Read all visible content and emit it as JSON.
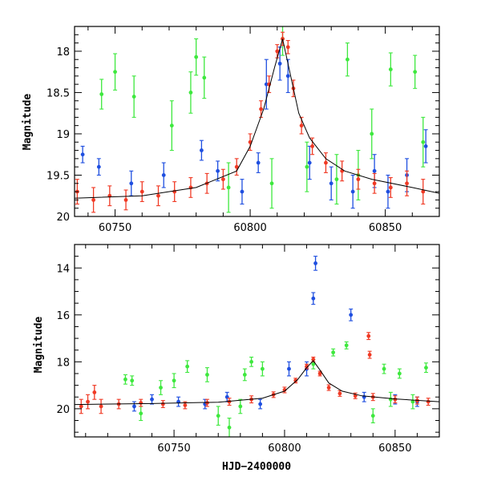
{
  "figure": {
    "xlabel": "HJD−2400000",
    "ylabel_top": "Magnitude",
    "ylabel_bottom": "Magnitude"
  },
  "colors": {
    "blue": "#1f4fe0",
    "green": "#3ee83e",
    "red": "#f03a25",
    "model": "#000000"
  },
  "chart_data": [
    {
      "type": "scatter",
      "panel": "top",
      "xlim": [
        60735,
        60870
      ],
      "ylim": [
        20.0,
        17.7
      ],
      "inverted_y": true,
      "ylabel": "Magnitude",
      "xticks": [
        60750,
        60800,
        60850
      ],
      "yticks": [
        18,
        18.5,
        19,
        19.5,
        20
      ],
      "ytick_labels": [
        "18",
        "18.5",
        "19",
        "19.5",
        "20"
      ],
      "series": [
        {
          "color": "green",
          "points": [
            [
              60745,
              18.52,
              0.18
            ],
            [
              60750,
              18.25,
              0.22
            ],
            [
              60757,
              18.55,
              0.25
            ],
            [
              60771,
              18.9,
              0.3
            ],
            [
              60778,
              18.5,
              0.25
            ],
            [
              60780,
              18.07,
              0.22
            ],
            [
              60783,
              18.32,
              0.25
            ],
            [
              60792,
              19.65,
              0.3
            ],
            [
              60808,
              19.6,
              0.3
            ],
            [
              60812,
              17.85,
              0.2
            ],
            [
              60821,
              19.4,
              0.3
            ],
            [
              60832,
              19.55,
              0.3
            ],
            [
              60836,
              18.1,
              0.2
            ],
            [
              60840,
              19.5,
              0.3
            ],
            [
              60845,
              19.0,
              0.3
            ],
            [
              60852,
              18.22,
              0.2
            ],
            [
              60861,
              18.25,
              0.2
            ],
            [
              60864,
              19.1,
              0.3
            ]
          ]
        },
        {
          "color": "blue",
          "points": [
            [
              60738,
              19.25,
              0.1
            ],
            [
              60744,
              19.4,
              0.1
            ],
            [
              60756,
              19.6,
              0.15
            ],
            [
              60768,
              19.5,
              0.15
            ],
            [
              60782,
              19.2,
              0.12
            ],
            [
              60788,
              19.45,
              0.12
            ],
            [
              60797,
              19.7,
              0.15
            ],
            [
              60803,
              19.35,
              0.12
            ],
            [
              60806,
              18.4,
              0.3
            ],
            [
              60811,
              18.15,
              0.2
            ],
            [
              60814,
              18.3,
              0.2
            ],
            [
              60822,
              19.35,
              0.2
            ],
            [
              60830,
              19.6,
              0.2
            ],
            [
              60838,
              19.7,
              0.2
            ],
            [
              60846,
              19.45,
              0.2
            ],
            [
              60851,
              19.7,
              0.2
            ],
            [
              60858,
              19.5,
              0.2
            ],
            [
              60865,
              19.15,
              0.2
            ]
          ]
        },
        {
          "color": "red",
          "points": [
            [
              60736,
              19.7,
              0.15
            ],
            [
              60742,
              19.8,
              0.15
            ],
            [
              60748,
              19.75,
              0.12
            ],
            [
              60754,
              19.8,
              0.12
            ],
            [
              60760,
              19.7,
              0.12
            ],
            [
              60766,
              19.75,
              0.12
            ],
            [
              60772,
              19.7,
              0.12
            ],
            [
              60778,
              19.65,
              0.12
            ],
            [
              60784,
              19.6,
              0.12
            ],
            [
              60790,
              19.55,
              0.12
            ],
            [
              60795,
              19.4,
              0.1
            ],
            [
              60800,
              19.1,
              0.1
            ],
            [
              60804,
              18.7,
              0.1
            ],
            [
              60807,
              18.4,
              0.1
            ],
            [
              60810,
              18.0,
              0.08
            ],
            [
              60812,
              17.85,
              0.08
            ],
            [
              60814,
              17.95,
              0.08
            ],
            [
              60816,
              18.45,
              0.1
            ],
            [
              60819,
              18.9,
              0.1
            ],
            [
              60823,
              19.15,
              0.1
            ],
            [
              60828,
              19.35,
              0.12
            ],
            [
              60834,
              19.45,
              0.12
            ],
            [
              60840,
              19.55,
              0.12
            ],
            [
              60846,
              19.6,
              0.12
            ],
            [
              60852,
              19.65,
              0.12
            ],
            [
              60858,
              19.6,
              0.15
            ],
            [
              60864,
              19.7,
              0.15
            ]
          ]
        }
      ],
      "model_curve": [
        [
          60735,
          19.78
        ],
        [
          60760,
          19.75
        ],
        [
          60780,
          19.65
        ],
        [
          60795,
          19.45
        ],
        [
          60800,
          19.15
        ],
        [
          60805,
          18.7
        ],
        [
          60809,
          18.2
        ],
        [
          60812,
          17.85
        ],
        [
          60815,
          18.3
        ],
        [
          60818,
          18.75
        ],
        [
          60822,
          19.05
        ],
        [
          60828,
          19.3
        ],
        [
          60835,
          19.45
        ],
        [
          60845,
          19.55
        ],
        [
          60860,
          19.65
        ],
        [
          60870,
          19.72
        ]
      ]
    },
    {
      "type": "scatter",
      "panel": "bottom",
      "xlim": [
        60705,
        60870
      ],
      "ylim": [
        21.2,
        13.0
      ],
      "inverted_y": true,
      "ylabel": "Magnitude",
      "xlabel": "HJD−2400000",
      "xticks": [
        60750,
        60800,
        60850
      ],
      "yticks": [
        14,
        16,
        18,
        20
      ],
      "ytick_labels": [
        "14",
        "16",
        "18",
        "20"
      ],
      "series": [
        {
          "color": "green",
          "points": [
            [
              60728,
              18.75,
              0.2
            ],
            [
              60731,
              18.8,
              0.2
            ],
            [
              60735,
              20.2,
              0.3
            ],
            [
              60744,
              19.1,
              0.3
            ],
            [
              60750,
              18.8,
              0.3
            ],
            [
              60756,
              18.2,
              0.25
            ],
            [
              60765,
              18.55,
              0.3
            ],
            [
              60770,
              20.3,
              0.4
            ],
            [
              60775,
              20.8,
              0.4
            ],
            [
              60780,
              19.9,
              0.3
            ],
            [
              60782,
              18.55,
              0.25
            ],
            [
              60785,
              18.0,
              0.2
            ],
            [
              60790,
              18.3,
              0.3
            ],
            [
              60813,
              18.1,
              0.2
            ],
            [
              60822,
              17.6,
              0.15
            ],
            [
              60828,
              17.3,
              0.15
            ],
            [
              60840,
              20.3,
              0.3
            ],
            [
              60845,
              18.3,
              0.2
            ],
            [
              60848,
              19.6,
              0.3
            ],
            [
              60852,
              18.5,
              0.2
            ],
            [
              60858,
              19.7,
              0.3
            ],
            [
              60864,
              18.25,
              0.2
            ]
          ]
        },
        {
          "color": "blue",
          "points": [
            [
              60732,
              19.9,
              0.2
            ],
            [
              60740,
              19.6,
              0.2
            ],
            [
              60752,
              19.7,
              0.2
            ],
            [
              60764,
              19.8,
              0.2
            ],
            [
              60774,
              19.5,
              0.2
            ],
            [
              60789,
              19.8,
              0.2
            ],
            [
              60802,
              18.3,
              0.3
            ],
            [
              60810,
              18.3,
              0.3
            ],
            [
              60813,
              15.3,
              0.25
            ],
            [
              60814,
              13.8,
              0.3
            ],
            [
              60830,
              16.0,
              0.25
            ],
            [
              60836,
              19.5,
              0.2
            ],
            [
              60850,
              19.6,
              0.2
            ],
            [
              60860,
              19.7,
              0.2
            ]
          ]
        },
        {
          "color": "red",
          "points": [
            [
              60708,
              19.9,
              0.3
            ],
            [
              60711,
              19.7,
              0.3
            ],
            [
              60714,
              19.3,
              0.3
            ],
            [
              60717,
              19.9,
              0.3
            ],
            [
              60725,
              19.8,
              0.2
            ],
            [
              60735,
              19.75,
              0.15
            ],
            [
              60745,
              19.8,
              0.15
            ],
            [
              60755,
              19.85,
              0.15
            ],
            [
              60765,
              19.75,
              0.15
            ],
            [
              60775,
              19.7,
              0.15
            ],
            [
              60785,
              19.6,
              0.15
            ],
            [
              60795,
              19.4,
              0.12
            ],
            [
              60800,
              19.2,
              0.12
            ],
            [
              60805,
              18.8,
              0.1
            ],
            [
              60810,
              18.2,
              0.1
            ],
            [
              60813,
              17.9,
              0.1
            ],
            [
              60816,
              18.5,
              0.1
            ],
            [
              60820,
              19.1,
              0.12
            ],
            [
              60825,
              19.35,
              0.12
            ],
            [
              60832,
              19.45,
              0.12
            ],
            [
              60838,
              16.9,
              0.15
            ],
            [
              60838.5,
              17.7,
              0.15
            ],
            [
              60840,
              19.5,
              0.15
            ],
            [
              60850,
              19.6,
              0.15
            ],
            [
              60860,
              19.65,
              0.15
            ],
            [
              60865,
              19.7,
              0.15
            ]
          ]
        }
      ],
      "model_curve": [
        [
          60705,
          19.82
        ],
        [
          60740,
          19.78
        ],
        [
          60770,
          19.72
        ],
        [
          60790,
          19.55
        ],
        [
          60800,
          19.25
        ],
        [
          60806,
          18.75
        ],
        [
          60810,
          18.25
        ],
        [
          60813,
          17.95
        ],
        [
          60816,
          18.35
        ],
        [
          60820,
          18.9
        ],
        [
          60826,
          19.25
        ],
        [
          60835,
          19.45
        ],
        [
          60850,
          19.58
        ],
        [
          60870,
          19.7
        ]
      ]
    }
  ]
}
